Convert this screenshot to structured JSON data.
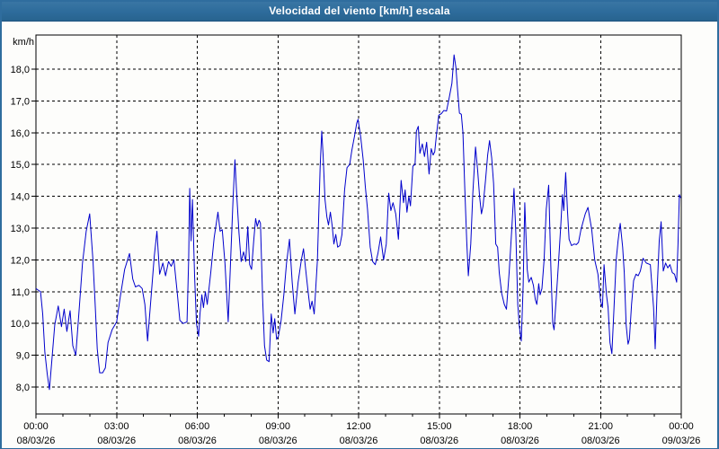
{
  "window": {
    "title": "Velocidad del viento [km/h] escala"
  },
  "colors": {
    "titlebar": "#2D6B9B",
    "frame": "#2F6D9E",
    "plot_background": "#FDFDFB",
    "series_line": "#0000CC",
    "grid": "#000000",
    "text": "#000000"
  },
  "chart_data": {
    "type": "line",
    "title": "Velocidad del viento [km/h] escala",
    "ylabel": "km/h",
    "y_unit_label": "km/h",
    "grid": "dashed",
    "legend_position": "none",
    "ylim": [
      7.2,
      19.1
    ],
    "xlim_hours": [
      0,
      24
    ],
    "yticks": [
      18,
      17,
      16,
      15,
      14,
      13,
      12,
      11,
      10,
      9,
      8
    ],
    "ytick_labels": [
      "18,0",
      "17,0",
      "16,0",
      "15,0",
      "14,0",
      "13,0",
      "12,0",
      "11,0",
      "10,0",
      "9,0",
      "8,0"
    ],
    "minor_x_tick_every_hours": 1,
    "xticks": [
      {
        "hour": 0,
        "time": "00:00",
        "date": "08/03/26"
      },
      {
        "hour": 3,
        "time": "03:00",
        "date": "08/03/26"
      },
      {
        "hour": 6,
        "time": "06:00",
        "date": "08/03/26"
      },
      {
        "hour": 9,
        "time": "09:00",
        "date": "08/03/26"
      },
      {
        "hour": 12,
        "time": "12:00",
        "date": "08/03/26"
      },
      {
        "hour": 15,
        "time": "15:00",
        "date": "08/03/26"
      },
      {
        "hour": 18,
        "time": "18:00",
        "date": "08/03/26"
      },
      {
        "hour": 21,
        "time": "21:00",
        "date": "08/03/26"
      },
      {
        "hour": 24,
        "time": "00:00",
        "date": "09/03/26"
      }
    ],
    "series": [
      {
        "name": "Velocidad del viento",
        "color": "#0000CC",
        "points": [
          [
            0.0,
            11.1
          ],
          [
            0.08,
            11.05
          ],
          [
            0.17,
            11.0
          ],
          [
            0.25,
            10.3
          ],
          [
            0.33,
            9.1
          ],
          [
            0.42,
            8.4
          ],
          [
            0.5,
            7.92
          ],
          [
            0.6,
            8.95
          ],
          [
            0.7,
            9.95
          ],
          [
            0.83,
            10.55
          ],
          [
            0.95,
            9.9
          ],
          [
            1.05,
            10.45
          ],
          [
            1.15,
            9.75
          ],
          [
            1.27,
            10.4
          ],
          [
            1.37,
            9.3
          ],
          [
            1.48,
            9.0
          ],
          [
            1.62,
            10.6
          ],
          [
            1.73,
            11.9
          ],
          [
            1.87,
            12.9
          ],
          [
            2.0,
            13.45
          ],
          [
            2.12,
            12.0
          ],
          [
            2.2,
            10.65
          ],
          [
            2.28,
            9.2
          ],
          [
            2.37,
            8.45
          ],
          [
            2.48,
            8.45
          ],
          [
            2.58,
            8.6
          ],
          [
            2.68,
            9.4
          ],
          [
            2.83,
            9.8
          ],
          [
            3.0,
            10.05
          ],
          [
            3.13,
            10.8
          ],
          [
            3.3,
            11.7
          ],
          [
            3.48,
            12.2
          ],
          [
            3.6,
            11.4
          ],
          [
            3.7,
            11.15
          ],
          [
            3.83,
            11.2
          ],
          [
            3.95,
            11.1
          ],
          [
            4.05,
            10.6
          ],
          [
            4.15,
            9.45
          ],
          [
            4.28,
            10.8
          ],
          [
            4.4,
            12.1
          ],
          [
            4.5,
            12.9
          ],
          [
            4.6,
            11.55
          ],
          [
            4.72,
            11.9
          ],
          [
            4.82,
            11.5
          ],
          [
            4.93,
            11.95
          ],
          [
            5.03,
            11.8
          ],
          [
            5.13,
            12.0
          ],
          [
            5.25,
            11.0
          ],
          [
            5.35,
            10.1
          ],
          [
            5.48,
            10.0
          ],
          [
            5.62,
            10.05
          ],
          [
            5.68,
            12.0
          ],
          [
            5.72,
            14.25
          ],
          [
            5.77,
            12.6
          ],
          [
            5.82,
            13.9
          ],
          [
            5.9,
            11.5
          ],
          [
            5.97,
            10.0
          ],
          [
            6.05,
            9.6
          ],
          [
            6.1,
            10.3
          ],
          [
            6.17,
            10.9
          ],
          [
            6.23,
            10.5
          ],
          [
            6.3,
            11.0
          ],
          [
            6.37,
            10.6
          ],
          [
            6.5,
            11.6
          ],
          [
            6.63,
            12.7
          ],
          [
            6.77,
            13.5
          ],
          [
            6.85,
            12.9
          ],
          [
            6.93,
            12.95
          ],
          [
            7.03,
            11.9
          ],
          [
            7.15,
            10.05
          ],
          [
            7.25,
            12.2
          ],
          [
            7.33,
            13.9
          ],
          [
            7.4,
            15.15
          ],
          [
            7.47,
            14.0
          ],
          [
            7.55,
            12.85
          ],
          [
            7.63,
            11.95
          ],
          [
            7.72,
            12.25
          ],
          [
            7.8,
            11.95
          ],
          [
            7.88,
            13.05
          ],
          [
            7.95,
            11.85
          ],
          [
            8.02,
            11.7
          ],
          [
            8.1,
            12.6
          ],
          [
            8.17,
            13.3
          ],
          [
            8.23,
            13.05
          ],
          [
            8.3,
            13.25
          ],
          [
            8.35,
            13.15
          ],
          [
            8.43,
            10.8
          ],
          [
            8.5,
            9.3
          ],
          [
            8.58,
            8.85
          ],
          [
            8.67,
            8.8
          ],
          [
            8.75,
            10.3
          ],
          [
            8.82,
            9.7
          ],
          [
            8.88,
            10.15
          ],
          [
            8.95,
            9.5
          ],
          [
            9.02,
            9.6
          ],
          [
            9.12,
            10.1
          ],
          [
            9.22,
            10.9
          ],
          [
            9.32,
            11.9
          ],
          [
            9.43,
            12.65
          ],
          [
            9.53,
            11.3
          ],
          [
            9.63,
            10.3
          ],
          [
            9.75,
            11.3
          ],
          [
            9.87,
            12.0
          ],
          [
            9.95,
            12.35
          ],
          [
            10.03,
            11.7
          ],
          [
            10.12,
            11.0
          ],
          [
            10.2,
            10.45
          ],
          [
            10.27,
            10.7
          ],
          [
            10.35,
            10.3
          ],
          [
            10.47,
            12.0
          ],
          [
            10.57,
            14.9
          ],
          [
            10.63,
            16.05
          ],
          [
            10.68,
            15.3
          ],
          [
            10.75,
            13.9
          ],
          [
            10.82,
            13.35
          ],
          [
            10.88,
            13.1
          ],
          [
            10.95,
            13.5
          ],
          [
            11.02,
            13.05
          ],
          [
            11.08,
            12.5
          ],
          [
            11.15,
            12.8
          ],
          [
            11.22,
            12.4
          ],
          [
            11.3,
            12.45
          ],
          [
            11.38,
            12.8
          ],
          [
            11.48,
            14.2
          ],
          [
            11.57,
            14.9
          ],
          [
            11.67,
            15.0
          ],
          [
            11.75,
            15.45
          ],
          [
            11.85,
            15.9
          ],
          [
            11.93,
            16.3
          ],
          [
            11.98,
            16.42
          ],
          [
            12.08,
            15.85
          ],
          [
            12.17,
            15.15
          ],
          [
            12.25,
            14.3
          ],
          [
            12.33,
            13.6
          ],
          [
            12.43,
            12.4
          ],
          [
            12.52,
            11.95
          ],
          [
            12.62,
            11.85
          ],
          [
            12.72,
            12.2
          ],
          [
            12.82,
            12.72
          ],
          [
            12.93,
            12.0
          ],
          [
            13.03,
            12.5
          ],
          [
            13.12,
            14.1
          ],
          [
            13.2,
            13.55
          ],
          [
            13.28,
            13.8
          ],
          [
            13.38,
            13.45
          ],
          [
            13.48,
            12.65
          ],
          [
            13.58,
            14.5
          ],
          [
            13.67,
            13.8
          ],
          [
            13.73,
            14.2
          ],
          [
            13.8,
            13.5
          ],
          [
            13.87,
            14.0
          ],
          [
            13.93,
            13.7
          ],
          [
            14.02,
            14.95
          ],
          [
            14.1,
            15.0
          ],
          [
            14.15,
            16.05
          ],
          [
            14.22,
            16.2
          ],
          [
            14.28,
            15.35
          ],
          [
            14.37,
            15.65
          ],
          [
            14.45,
            15.25
          ],
          [
            14.53,
            15.7
          ],
          [
            14.62,
            14.7
          ],
          [
            14.7,
            15.5
          ],
          [
            14.77,
            15.3
          ],
          [
            14.83,
            15.4
          ],
          [
            14.9,
            15.98
          ],
          [
            14.98,
            16.55
          ],
          [
            15.08,
            16.6
          ],
          [
            15.17,
            16.7
          ],
          [
            15.27,
            16.68
          ],
          [
            15.37,
            17.1
          ],
          [
            15.47,
            17.55
          ],
          [
            15.55,
            18.45
          ],
          [
            15.62,
            18.05
          ],
          [
            15.68,
            17.35
          ],
          [
            15.75,
            16.62
          ],
          [
            15.82,
            16.58
          ],
          [
            15.88,
            16.0
          ],
          [
            15.95,
            14.2
          ],
          [
            16.02,
            12.6
          ],
          [
            16.08,
            11.5
          ],
          [
            16.17,
            12.5
          ],
          [
            16.25,
            14.1
          ],
          [
            16.35,
            15.55
          ],
          [
            16.43,
            14.8
          ],
          [
            16.5,
            14.0
          ],
          [
            16.57,
            13.45
          ],
          [
            16.63,
            13.7
          ],
          [
            16.72,
            14.5
          ],
          [
            16.8,
            15.3
          ],
          [
            16.87,
            15.75
          ],
          [
            16.95,
            15.2
          ],
          [
            17.02,
            14.4
          ],
          [
            17.1,
            12.5
          ],
          [
            17.17,
            12.4
          ],
          [
            17.23,
            11.6
          ],
          [
            17.32,
            10.95
          ],
          [
            17.42,
            10.6
          ],
          [
            17.5,
            10.45
          ],
          [
            17.6,
            11.6
          ],
          [
            17.7,
            13.0
          ],
          [
            17.78,
            14.25
          ],
          [
            17.85,
            12.8
          ],
          [
            17.92,
            10.6
          ],
          [
            17.98,
            9.9
          ],
          [
            18.05,
            9.45
          ],
          [
            18.12,
            11.2
          ],
          [
            18.18,
            13.8
          ],
          [
            18.27,
            11.7
          ],
          [
            18.33,
            11.3
          ],
          [
            18.42,
            11.45
          ],
          [
            18.5,
            11.2
          ],
          [
            18.57,
            10.75
          ],
          [
            18.63,
            10.6
          ],
          [
            18.7,
            11.25
          ],
          [
            18.75,
            10.9
          ],
          [
            18.82,
            11.1
          ],
          [
            18.9,
            12.0
          ],
          [
            18.98,
            13.6
          ],
          [
            19.07,
            14.35
          ],
          [
            19.15,
            11.8
          ],
          [
            19.22,
            10.0
          ],
          [
            19.27,
            9.8
          ],
          [
            19.35,
            10.8
          ],
          [
            19.43,
            11.85
          ],
          [
            19.52,
            13.1
          ],
          [
            19.58,
            14.05
          ],
          [
            19.63,
            13.55
          ],
          [
            19.7,
            14.75
          ],
          [
            19.77,
            13.5
          ],
          [
            19.83,
            12.65
          ],
          [
            19.92,
            12.45
          ],
          [
            20.02,
            12.5
          ],
          [
            20.1,
            12.48
          ],
          [
            20.18,
            12.55
          ],
          [
            20.27,
            12.95
          ],
          [
            20.35,
            13.2
          ],
          [
            20.43,
            13.45
          ],
          [
            20.53,
            13.65
          ],
          [
            20.67,
            12.95
          ],
          [
            20.78,
            12.0
          ],
          [
            20.9,
            11.55
          ],
          [
            21.0,
            10.7
          ],
          [
            21.07,
            10.5
          ],
          [
            21.13,
            11.85
          ],
          [
            21.22,
            10.9
          ],
          [
            21.28,
            10.5
          ],
          [
            21.35,
            9.4
          ],
          [
            21.42,
            9.05
          ],
          [
            21.5,
            10.5
          ],
          [
            21.58,
            12.0
          ],
          [
            21.65,
            12.6
          ],
          [
            21.73,
            13.15
          ],
          [
            21.82,
            12.4
          ],
          [
            21.88,
            11.6
          ],
          [
            21.95,
            9.95
          ],
          [
            22.02,
            9.35
          ],
          [
            22.07,
            9.5
          ],
          [
            22.15,
            10.6
          ],
          [
            22.23,
            11.35
          ],
          [
            22.32,
            11.55
          ],
          [
            22.4,
            11.5
          ],
          [
            22.48,
            11.65
          ],
          [
            22.58,
            12.05
          ],
          [
            22.7,
            11.9
          ],
          [
            22.85,
            11.85
          ],
          [
            22.97,
            10.5
          ],
          [
            23.03,
            9.2
          ],
          [
            23.1,
            11.0
          ],
          [
            23.18,
            12.6
          ],
          [
            23.25,
            13.2
          ],
          [
            23.33,
            11.65
          ],
          [
            23.42,
            11.9
          ],
          [
            23.5,
            11.75
          ],
          [
            23.58,
            11.85
          ],
          [
            23.67,
            11.6
          ],
          [
            23.75,
            11.55
          ],
          [
            23.83,
            11.3
          ],
          [
            23.88,
            12.5
          ],
          [
            23.93,
            14.05
          ],
          [
            23.98,
            13.95
          ]
        ]
      }
    ]
  }
}
